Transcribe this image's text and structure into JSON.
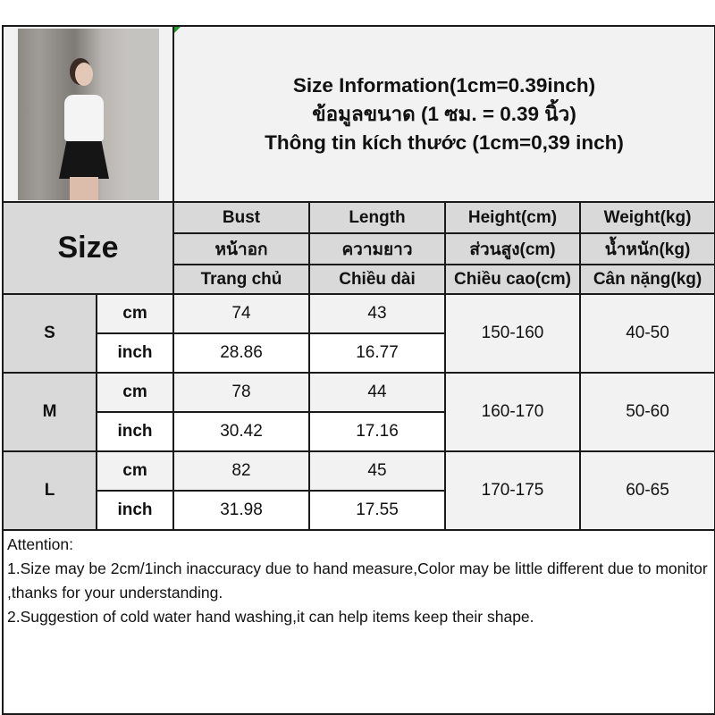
{
  "title": {
    "line1": "Size Information(1cm=0.39inch)",
    "line2": "ข้อมูลขนาด (1 ซม. = 0.39 นิ้ว)",
    "line3": "Thông tin kích thước (1cm=0,39 inch)"
  },
  "header": {
    "size_label": "Size",
    "columns": [
      {
        "en": "Bust",
        "th": "หน้าอก",
        "vi": "Trang chủ"
      },
      {
        "en": "Length",
        "th": "ความยาว",
        "vi": "Chiều dài"
      },
      {
        "en": "Height(cm)",
        "th": "ส่วนสูง(cm)",
        "vi": "Chiều cao(cm)"
      },
      {
        "en": "Weight(kg)",
        "th": "น้ำหนัก(kg)",
        "vi": "Cân nặng(kg)"
      }
    ]
  },
  "units": {
    "cm": "cm",
    "inch": "inch"
  },
  "rows": [
    {
      "size": "S",
      "cm": {
        "bust": "74",
        "length": "43"
      },
      "inch": {
        "bust": "28.86",
        "length": "16.77"
      },
      "height": "150-160",
      "weight": "40-50"
    },
    {
      "size": "M",
      "cm": {
        "bust": "78",
        "length": "44"
      },
      "inch": {
        "bust": "30.42",
        "length": "17.16"
      },
      "height": "160-170",
      "weight": "50-60"
    },
    {
      "size": "L",
      "cm": {
        "bust": "82",
        "length": "45"
      },
      "inch": {
        "bust": "31.98",
        "length": "17.55"
      },
      "height": "170-175",
      "weight": "60-65"
    }
  ],
  "attention": {
    "heading": "Attention:",
    "note1": "1.Size may be 2cm/1inch inaccuracy due to hand measure,Color may be little different due to monitor ,thanks for your understanding.",
    "note2": "2.Suggestion of cold water hand washing,it can help items keep their shape."
  },
  "colors": {
    "header_bg": "#d9d9d9",
    "light_bg": "#f2f2f2",
    "border": "#1a1a1a"
  }
}
